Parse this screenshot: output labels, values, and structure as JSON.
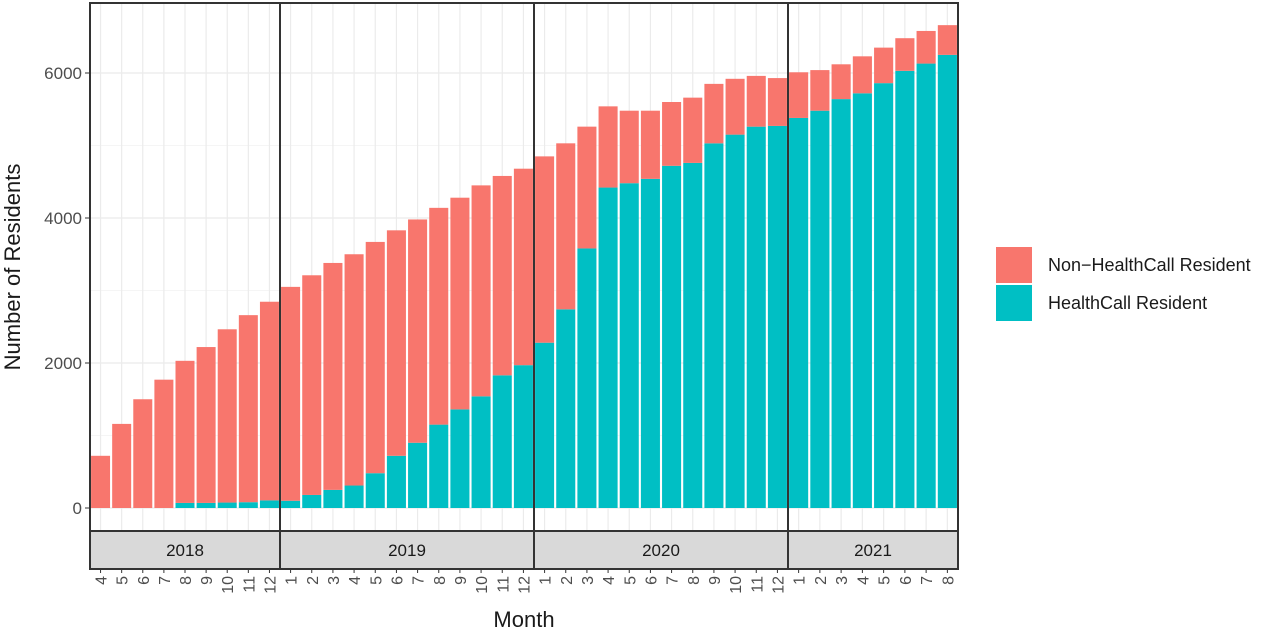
{
  "chart_data": {
    "type": "bar",
    "stacked": true,
    "xlabel": "Month",
    "ylabel": "Number of Residents",
    "ylim": [
      0,
      6900
    ],
    "yticks": [
      0,
      2000,
      4000,
      6000
    ],
    "grid": true,
    "legend_position": "right",
    "facets": [
      {
        "label": "2018",
        "categories": [
          "4",
          "5",
          "6",
          "7",
          "8",
          "9",
          "10",
          "11",
          "12"
        ],
        "series": [
          {
            "name": "HealthCall Resident",
            "color": "#00BFC4",
            "values": [
              0,
              0,
              0,
              0,
              70,
              70,
              75,
              80,
              105
            ]
          },
          {
            "name": "Non-HealthCall Resident",
            "color": "#F8766D",
            "values": [
              720,
              1160,
              1500,
              1770,
              1960,
              2150,
              2390,
              2580,
              2740
            ]
          }
        ]
      },
      {
        "label": "2019",
        "categories": [
          "1",
          "2",
          "3",
          "4",
          "5",
          "6",
          "7",
          "8",
          "9",
          "10",
          "11",
          "12"
        ],
        "series": [
          {
            "name": "HealthCall Resident",
            "color": "#00BFC4",
            "values": [
              100,
              180,
              250,
              310,
              480,
              720,
              900,
              1150,
              1360,
              1540,
              1830,
              1970
            ]
          },
          {
            "name": "Non-HealthCall Resident",
            "color": "#F8766D",
            "values": [
              2950,
              3030,
              3130,
              3190,
              3190,
              3110,
              3080,
              2990,
              2920,
              2910,
              2750,
              2710
            ]
          }
        ]
      },
      {
        "label": "2020",
        "categories": [
          "1",
          "2",
          "3",
          "4",
          "5",
          "6",
          "7",
          "8",
          "9",
          "10",
          "11",
          "12"
        ],
        "series": [
          {
            "name": "HealthCall Resident",
            "color": "#00BFC4",
            "values": [
              2280,
              2740,
              3580,
              4420,
              4480,
              4540,
              4720,
              4760,
              5030,
              5150,
              5260,
              5270
            ]
          },
          {
            "name": "Non-HealthCall Resident",
            "color": "#F8766D",
            "values": [
              2570,
              2290,
              1680,
              1120,
              1000,
              940,
              880,
              900,
              820,
              770,
              700,
              660
            ]
          }
        ]
      },
      {
        "label": "2021",
        "categories": [
          "1",
          "2",
          "3",
          "4",
          "5",
          "6",
          "7",
          "8"
        ],
        "series": [
          {
            "name": "HealthCall Resident",
            "color": "#00BFC4",
            "values": [
              5380,
              5480,
              5640,
              5720,
              5860,
              6030,
              6130,
              6250
            ]
          },
          {
            "name": "Non-HealthCall Resident",
            "color": "#F8766D",
            "values": [
              630,
              560,
              480,
              510,
              490,
              450,
              450,
              410
            ]
          }
        ]
      }
    ],
    "legend": [
      {
        "label": "Non−HealthCall Resident",
        "color": "#F8766D"
      },
      {
        "label": "HealthCall Resident",
        "color": "#00BFC4"
      }
    ]
  }
}
